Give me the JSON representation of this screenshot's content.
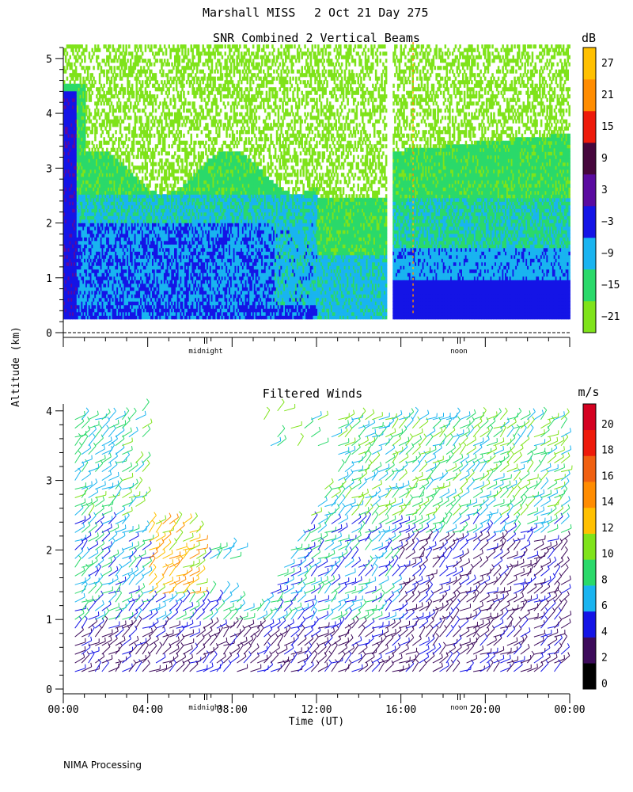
{
  "header": {
    "site": "Marshall MISS",
    "date": "2 Oct 21 Day 275"
  },
  "y_axis_label": "Altitude (km)",
  "x_axis_label": "Time (UT)",
  "footer": "NIMA Processing",
  "markers": {
    "midnight": "midnight",
    "noon": "noon"
  },
  "chart_data": [
    {
      "type": "heatmap",
      "title": "SNR Combined 2 Vertical Beams",
      "ylabel": "Altitude (km)",
      "ylim": [
        0,
        5.2
      ],
      "yticks": [
        0,
        1,
        2,
        3,
        4,
        5
      ],
      "xlim_hours": [
        0,
        24
      ],
      "x_major_ticks_hours": [
        0,
        4,
        8,
        12,
        16,
        20,
        24
      ],
      "data_gap_hours": [
        15.3,
        15.6
      ],
      "colorbar": {
        "unit": "dB",
        "tick_labels": [
          "27",
          "21",
          "15",
          "9",
          "3",
          "−3",
          "−9",
          "−15",
          "−21"
        ],
        "bins": [
          {
            "from": -24,
            "to": -18,
            "color": "#7fe31a"
          },
          {
            "from": -18,
            "to": -12,
            "color": "#2ad96a"
          },
          {
            "from": -12,
            "to": -6,
            "color": "#19b4f0"
          },
          {
            "from": -6,
            "to": 0,
            "color": "#1414e6"
          },
          {
            "from": 0,
            "to": 6,
            "color": "#5a0aa0"
          },
          {
            "from": 6,
            "to": 12,
            "color": "#46063c"
          },
          {
            "from": 12,
            "to": 18,
            "color": "#ee1a0a"
          },
          {
            "from": 18,
            "to": 24,
            "color": "#ff8c00"
          },
          {
            "from": 24,
            "to": 30,
            "color": "#ffc000"
          }
        ]
      }
    },
    {
      "type": "barbs",
      "title": "Filtered Winds",
      "ylabel": "Altitude (km)",
      "xlabel": "Time (UT)",
      "ylim": [
        0,
        4.1
      ],
      "yticks": [
        0,
        1,
        2,
        3,
        4
      ],
      "xlim_hours": [
        0,
        24
      ],
      "x_tick_labels": [
        "00:00",
        "04:00",
        "08:00",
        "12:00",
        "16:00",
        "20:00",
        "00:00"
      ],
      "colorbar": {
        "unit": "m/s",
        "tick_labels": [
          "20",
          "18",
          "16",
          "14",
          "12",
          "10",
          "8",
          "6",
          "4",
          "2",
          "0"
        ],
        "bins": [
          {
            "from": 0,
            "to": 2,
            "color": "#000000"
          },
          {
            "from": 2,
            "to": 4,
            "color": "#3c0a5a"
          },
          {
            "from": 4,
            "to": 6,
            "color": "#1414e6"
          },
          {
            "from": 6,
            "to": 8,
            "color": "#19b4f0"
          },
          {
            "from": 8,
            "to": 10,
            "color": "#2ad96a"
          },
          {
            "from": 10,
            "to": 12,
            "color": "#7fe31a"
          },
          {
            "from": 12,
            "to": 14,
            "color": "#ffc000"
          },
          {
            "from": 14,
            "to": 16,
            "color": "#ff8c00"
          },
          {
            "from": 16,
            "to": 18,
            "color": "#f06010"
          },
          {
            "from": 18,
            "to": 20,
            "color": "#ee1a0a"
          },
          {
            "from": 20,
            "to": 22,
            "color": "#d40020"
          }
        ]
      }
    }
  ]
}
